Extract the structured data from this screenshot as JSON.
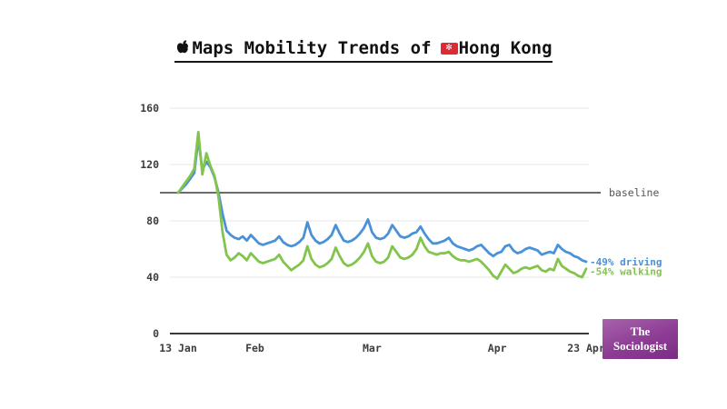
{
  "title": {
    "icon": "apple-logo",
    "text_before_flag": "Maps Mobility Trends of",
    "flag_icon": "hong-kong-flag",
    "flag_glyph": "✻",
    "text_after_flag": "Hong Kong"
  },
  "branding": {
    "line1": "The",
    "line2": "Sociologist"
  },
  "colors": {
    "driving": "#4a92d8",
    "walking": "#83c44c",
    "baseline_line": "#6b6b6b",
    "axis_text": "#3d3d3d",
    "zero_axis": "#3a3a3a",
    "grid": "#e4e4e4",
    "brand_purple_from": "#a763ab",
    "brand_purple_to": "#7a2d84",
    "flag_red": "#de2a33",
    "title_text": "#111111"
  },
  "chart_data": {
    "type": "line",
    "title": "Maps Mobility Trends of 🇭🇰 Hong Kong",
    "x_unit": "day",
    "x_range": [
      "13 Jan",
      "23 Apr"
    ],
    "x_ticks": [
      {
        "label": "13 Jan",
        "day": 0
      },
      {
        "label": "Feb",
        "day": 19
      },
      {
        "label": "Mar",
        "day": 48
      },
      {
        "label": "Apr",
        "day": 79
      },
      {
        "label": "23 Apr",
        "day": 101
      }
    ],
    "y_ticks": [
      0,
      40,
      80,
      120,
      160
    ],
    "ylim": [
      0,
      160
    ],
    "grid": true,
    "baseline": {
      "value": 100,
      "label": "baseline"
    },
    "series": [
      {
        "name": "driving",
        "end_label": "-49% driving",
        "change_pct": -49,
        "color": "#4a92d8",
        "values": [
          100,
          103,
          106,
          110,
          114,
          138,
          116,
          122,
          118,
          111,
          100,
          85,
          73,
          70,
          68,
          67,
          69,
          66,
          70,
          67,
          64,
          63,
          64,
          65,
          66,
          69,
          65,
          63,
          62,
          63,
          65,
          68,
          79,
          70,
          66,
          64,
          65,
          67,
          70,
          77,
          71,
          66,
          65,
          66,
          68,
          71,
          75,
          81,
          72,
          68,
          67,
          68,
          71,
          77,
          73,
          69,
          68,
          69,
          71,
          72,
          76,
          71,
          67,
          64,
          64,
          65,
          66,
          68,
          64,
          62,
          61,
          60,
          59,
          60,
          62,
          63,
          60,
          57,
          55,
          57,
          58,
          62,
          63,
          59,
          57,
          58,
          60,
          61,
          60,
          59,
          56,
          57,
          58,
          57,
          63,
          60,
          58,
          57,
          55,
          54,
          52,
          51
        ]
      },
      {
        "name": "walking",
        "end_label": "-54% walking",
        "change_pct": -54,
        "color": "#83c44c",
        "values": [
          100,
          104,
          108,
          112,
          117,
          143,
          113,
          128,
          119,
          112,
          97,
          72,
          56,
          52,
          54,
          57,
          55,
          52,
          57,
          54,
          51,
          50,
          51,
          52,
          53,
          56,
          51,
          48,
          45,
          47,
          49,
          52,
          62,
          53,
          49,
          47,
          48,
          50,
          53,
          61,
          55,
          50,
          48,
          49,
          51,
          54,
          58,
          64,
          55,
          51,
          50,
          51,
          54,
          62,
          58,
          54,
          53,
          54,
          56,
          60,
          68,
          62,
          58,
          57,
          56,
          57,
          57,
          58,
          55,
          53,
          52,
          52,
          51,
          52,
          53,
          51,
          48,
          45,
          41,
          39,
          44,
          49,
          46,
          43,
          44,
          46,
          47,
          46,
          47,
          48,
          45,
          44,
          46,
          45,
          53,
          48,
          46,
          44,
          43,
          41,
          40,
          46
        ]
      }
    ]
  }
}
